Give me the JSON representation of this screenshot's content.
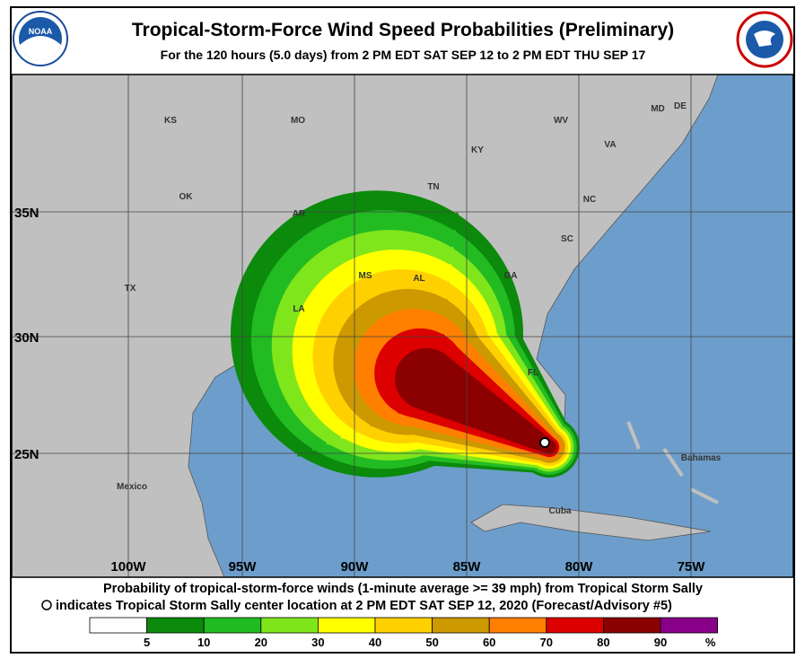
{
  "header": {
    "title": "Tropical-Storm-Force Wind Speed Probabilities (Preliminary)",
    "subtitle": "For the 120 hours (5.0 days) from 2 PM EDT SAT SEP 12 to 2 PM EDT THU SEP 17",
    "left_logo": "NOAA"
  },
  "map": {
    "latitude_labels": [
      "35N",
      "30N",
      "25N"
    ],
    "longitude_labels": [
      "100W",
      "95W",
      "90W",
      "85W",
      "80W",
      "75W"
    ],
    "places": [
      "KS",
      "MO",
      "KY",
      "WV",
      "VA",
      "MD",
      "DE",
      "OK",
      "TN",
      "NC",
      "AR",
      "SC",
      "TX",
      "MS",
      "AL",
      "GA",
      "LA",
      "FL",
      "Mexico",
      "Cuba",
      "Bahamas"
    ]
  },
  "footer": {
    "caption_line_1": "Probability of tropical-storm-force winds (1-minute average >= 39 mph) from Tropical Storm Sally",
    "caption_line_2": "indicates Tropical Storm Sally center location at 2 PM EDT SAT SEP 12, 2020 (Forecast/Advisory #5)"
  },
  "legend": {
    "colors": [
      "#ffffff",
      "#0b8a0b",
      "#22bb22",
      "#7fe61c",
      "#ffff00",
      "#ffd000",
      "#cc9900",
      "#ff8000",
      "#dd0000",
      "#8b0000",
      "#880088"
    ],
    "labels": [
      "5",
      "10",
      "20",
      "30",
      "40",
      "50",
      "60",
      "70",
      "80",
      "90",
      "%"
    ]
  }
}
